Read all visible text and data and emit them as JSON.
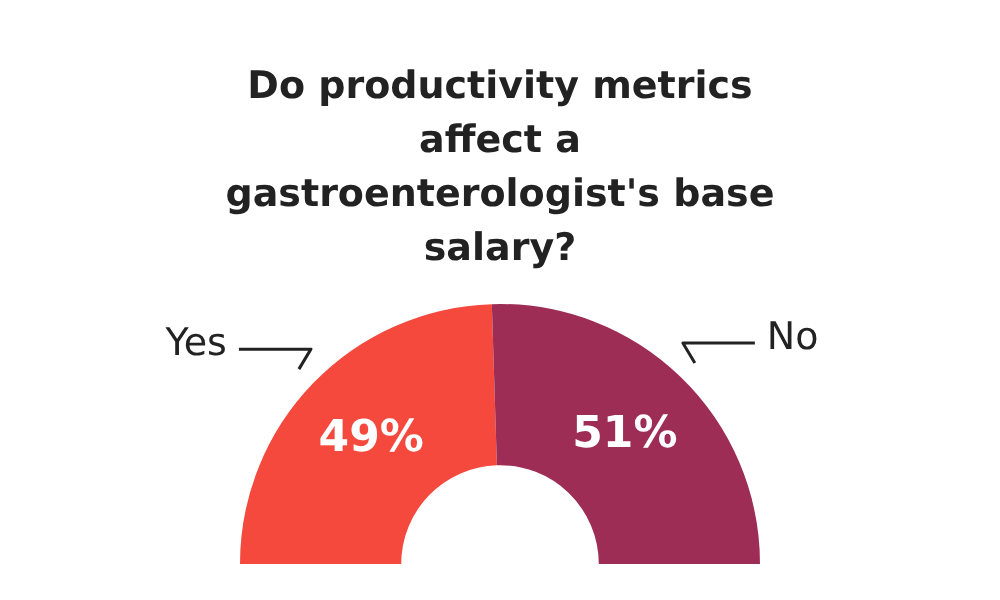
{
  "chart_data": {
    "type": "donut",
    "title": "Do productivity metrics affect a gastroenterologist's base salary?",
    "categories": [
      "Yes",
      "No"
    ],
    "values": [
      49,
      51
    ],
    "colors": [
      "#f5493d",
      "#9d2d55"
    ],
    "value_labels": [
      "49%",
      "51%"
    ]
  }
}
